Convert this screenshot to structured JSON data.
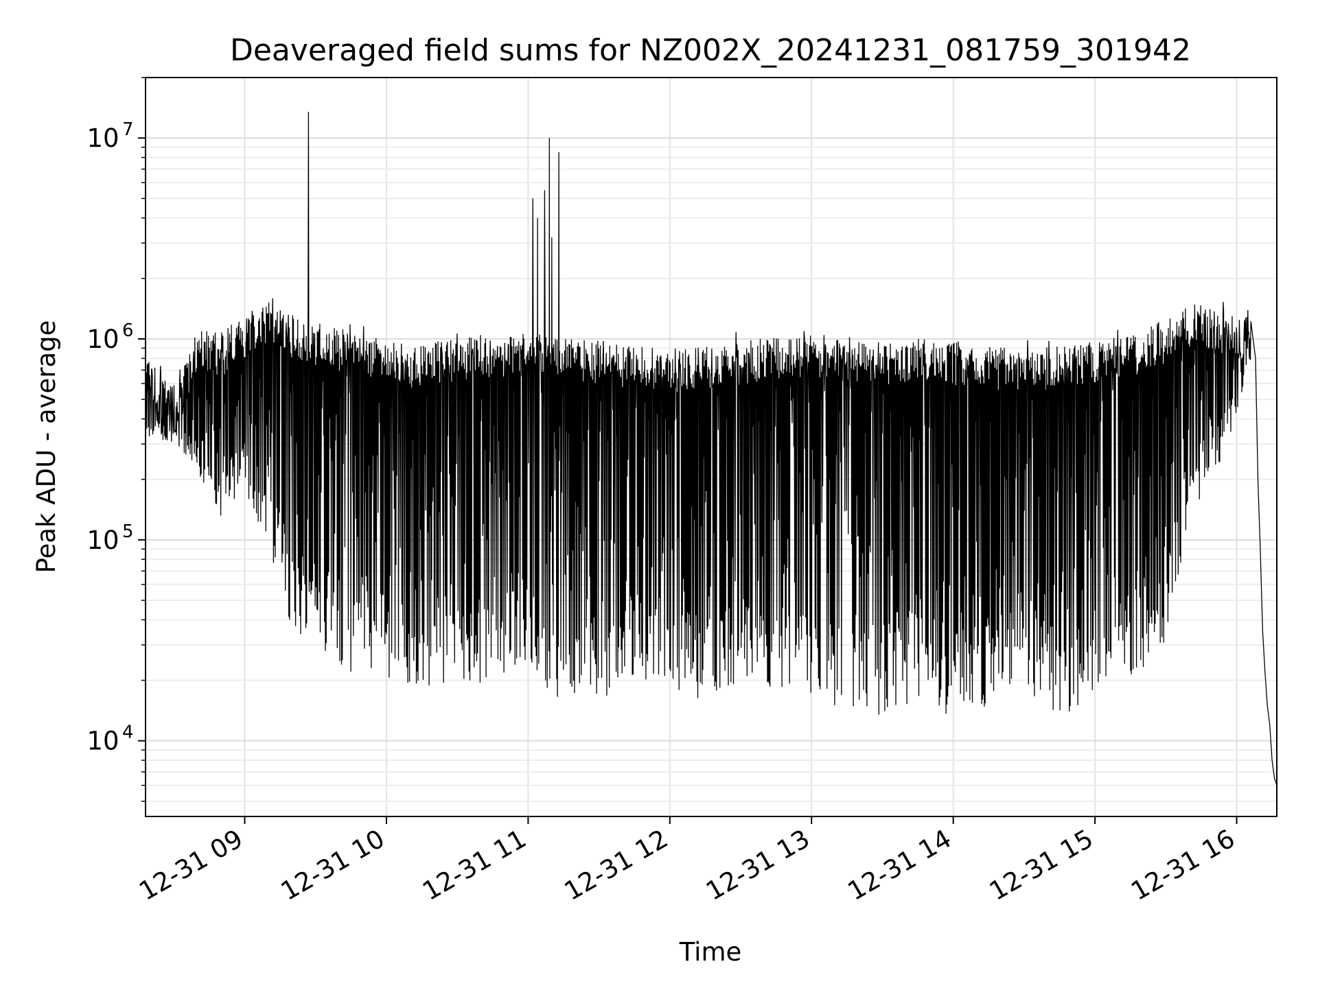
{
  "chart_data": {
    "type": "line",
    "title": "Deaveraged field sums for NZ002X_20241231_081759_301942",
    "xlabel": "Time",
    "ylabel": "Peak ADU - average",
    "yscale": "log",
    "ylim": [
      4200,
      20000000
    ],
    "xlim": [
      "2024-12-31 08:18",
      "2024-12-31 16:17"
    ],
    "grid": true,
    "legend": "none",
    "line_color": "#000000",
    "x_ticks": [
      {
        "value": "2024-12-31 09:00",
        "label": "12-31 09"
      },
      {
        "value": "2024-12-31 10:00",
        "label": "12-31 10"
      },
      {
        "value": "2024-12-31 11:00",
        "label": "12-31 11"
      },
      {
        "value": "2024-12-31 12:00",
        "label": "12-31 12"
      },
      {
        "value": "2024-12-31 13:00",
        "label": "12-31 13"
      },
      {
        "value": "2024-12-31 14:00",
        "label": "12-31 14"
      },
      {
        "value": "2024-12-31 15:00",
        "label": "12-31 15"
      },
      {
        "value": "2024-12-31 16:00",
        "label": "12-31 16"
      }
    ],
    "y_ticks": [
      {
        "value": 10000,
        "base": "10",
        "exp": "4"
      },
      {
        "value": 100000,
        "base": "10",
        "exp": "5"
      },
      {
        "value": 1000000,
        "base": "10",
        "exp": "6"
      },
      {
        "value": 10000000,
        "base": "10",
        "exp": "7"
      }
    ],
    "series": [
      {
        "envelope": [
          {
            "x": "2024-12-31 08:18",
            "upper": 1000000,
            "lower": 320000
          },
          {
            "x": "2024-12-31 08:30",
            "upper": 600000,
            "lower": 300000
          },
          {
            "x": "2024-12-31 08:40",
            "upper": 1300000,
            "lower": 220000
          },
          {
            "x": "2024-12-31 08:50",
            "upper": 1200000,
            "lower": 130000
          },
          {
            "x": "2024-12-31 09:00",
            "upper": 1500000,
            "lower": 180000
          },
          {
            "x": "2024-12-31 09:10",
            "upper": 1750000,
            "lower": 90000
          },
          {
            "x": "2024-12-31 09:20",
            "upper": 1500000,
            "lower": 35000
          },
          {
            "x": "2024-12-31 09:30",
            "upper": 1350000,
            "lower": 30000
          },
          {
            "x": "2024-12-31 09:45",
            "upper": 1250000,
            "lower": 22000
          },
          {
            "x": "2024-12-31 10:00",
            "upper": 1100000,
            "lower": 20000
          },
          {
            "x": "2024-12-31 10:15",
            "upper": 1050000,
            "lower": 16000
          },
          {
            "x": "2024-12-31 10:30",
            "upper": 1150000,
            "lower": 18000
          },
          {
            "x": "2024-12-31 10:45",
            "upper": 1200000,
            "lower": 20000
          },
          {
            "x": "2024-12-31 11:00",
            "upper": 1200000,
            "lower": 22000
          },
          {
            "x": "2024-12-31 11:15",
            "upper": 1150000,
            "lower": 15000
          },
          {
            "x": "2024-12-31 11:30",
            "upper": 1100000,
            "lower": 14000
          },
          {
            "x": "2024-12-31 11:45",
            "upper": 1050000,
            "lower": 20000
          },
          {
            "x": "2024-12-31 12:00",
            "upper": 1000000,
            "lower": 19000
          },
          {
            "x": "2024-12-31 12:15",
            "upper": 1050000,
            "lower": 15000
          },
          {
            "x": "2024-12-31 12:30",
            "upper": 1100000,
            "lower": 20000
          },
          {
            "x": "2024-12-31 12:45",
            "upper": 1150000,
            "lower": 18000
          },
          {
            "x": "2024-12-31 13:00",
            "upper": 1200000,
            "lower": 16000
          },
          {
            "x": "2024-12-31 13:15",
            "upper": 1150000,
            "lower": 14000
          },
          {
            "x": "2024-12-31 13:30",
            "upper": 1100000,
            "lower": 12000
          },
          {
            "x": "2024-12-31 13:45",
            "upper": 1150000,
            "lower": 16000
          },
          {
            "x": "2024-12-31 14:00",
            "upper": 1100000,
            "lower": 13000
          },
          {
            "x": "2024-12-31 14:15",
            "upper": 1050000,
            "lower": 15000
          },
          {
            "x": "2024-12-31 14:30",
            "upper": 1000000,
            "lower": 18000
          },
          {
            "x": "2024-12-31 14:45",
            "upper": 1050000,
            "lower": 12000
          },
          {
            "x": "2024-12-31 15:00",
            "upper": 1100000,
            "lower": 17000
          },
          {
            "x": "2024-12-31 15:15",
            "upper": 1200000,
            "lower": 20000
          },
          {
            "x": "2024-12-31 15:30",
            "upper": 1400000,
            "lower": 30000
          },
          {
            "x": "2024-12-31 15:40",
            "upper": 1700000,
            "lower": 120000
          },
          {
            "x": "2024-12-31 15:50",
            "upper": 1600000,
            "lower": 200000
          },
          {
            "x": "2024-12-31 16:00",
            "upper": 1500000,
            "lower": 400000
          },
          {
            "x": "2024-12-31 16:06",
            "upper": 1400000,
            "lower": 800000
          }
        ],
        "spikes": [
          {
            "x": "2024-12-31 09:27",
            "y": 13500000
          },
          {
            "x": "2024-12-31 11:02",
            "y": 5000000
          },
          {
            "x": "2024-12-31 11:04",
            "y": 4000000
          },
          {
            "x": "2024-12-31 11:07",
            "y": 5500000
          },
          {
            "x": "2024-12-31 11:09",
            "y": 10000000
          },
          {
            "x": "2024-12-31 11:10",
            "y": 3200000
          },
          {
            "x": "2024-12-31 11:13",
            "y": 8500000
          }
        ],
        "tail": [
          {
            "x": "2024-12-31 16:06",
            "y": 1400000
          },
          {
            "x": "2024-12-31 16:08",
            "y": 800000
          },
          {
            "x": "2024-12-31 16:09",
            "y": 200000
          },
          {
            "x": "2024-12-31 16:10",
            "y": 90000
          },
          {
            "x": "2024-12-31 16:11",
            "y": 35000
          },
          {
            "x": "2024-12-31 16:12",
            "y": 22000
          },
          {
            "x": "2024-12-31 16:13",
            "y": 15000
          },
          {
            "x": "2024-12-31 16:14",
            "y": 12000
          },
          {
            "x": "2024-12-31 16:15",
            "y": 8000
          },
          {
            "x": "2024-12-31 16:16",
            "y": 6500
          },
          {
            "x": "2024-12-31 16:17",
            "y": 6000
          }
        ]
      }
    ]
  }
}
